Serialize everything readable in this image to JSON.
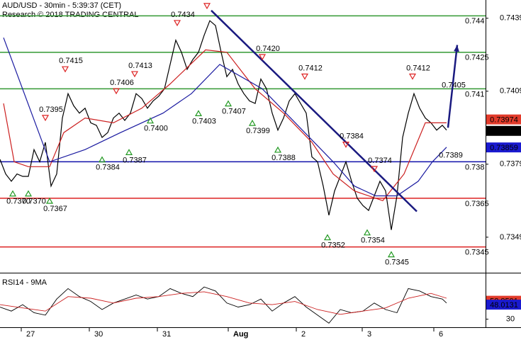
{
  "chart_data": {
    "type": "line",
    "title": "AUD/USD - 30min - 5:39:37 (CET)",
    "subtitle": "Research © 2018 TRADING CENTRAL",
    "xlim": [
      0,
      342.5
    ],
    "xticks": [
      {
        "value": 15,
        "label": "27"
      },
      {
        "value": 63,
        "label": "30"
      },
      {
        "value": 111,
        "label": "31"
      },
      {
        "value": 161,
        "label": "Aug"
      },
      {
        "value": 209,
        "label": "2"
      },
      {
        "value": 255.5,
        "label": "3"
      },
      {
        "value": 306,
        "label": "6"
      }
    ],
    "ylim": [
      0.73344,
      0.74465
    ],
    "yticks": [
      0.7349,
      0.7379,
      0.7409,
      0.7439
    ],
    "series": [
      {
        "color": "#000000",
        "x": [
          0,
          4,
          8,
          12,
          16,
          20,
          24,
          28,
          32,
          36,
          40,
          44,
          48,
          52,
          56,
          60,
          64,
          68,
          72,
          76,
          80,
          84,
          88,
          92,
          96,
          100,
          104,
          108,
          112,
          116,
          120,
          124,
          128,
          132,
          136,
          140,
          144,
          148,
          152,
          156,
          160,
          164,
          168,
          172,
          176,
          180,
          184,
          188,
          192,
          196,
          200,
          204,
          208,
          212,
          216,
          220,
          224,
          228,
          232,
          236,
          240,
          244,
          248,
          252,
          256,
          260,
          264,
          268,
          272,
          276,
          280,
          284,
          288,
          292,
          296,
          300,
          304,
          308,
          312,
          315
        ],
        "values": [
          0.7381,
          0.7375,
          0.7372,
          0.7375,
          0.7374,
          0.7374,
          0.7385,
          0.738,
          0.7388,
          0.737,
          0.7375,
          0.7398,
          0.7408,
          0.7403,
          0.74,
          0.7402,
          0.7396,
          0.7395,
          0.739,
          0.7392,
          0.7398,
          0.74,
          0.7397,
          0.74,
          0.7408,
          0.7406,
          0.7402,
          0.7405,
          0.7407,
          0.741,
          0.742,
          0.743,
          0.7425,
          0.7418,
          0.7422,
          0.7425,
          0.7432,
          0.7438,
          0.7436,
          0.7425,
          0.7415,
          0.7418,
          0.7412,
          0.7408,
          0.7405,
          0.7404,
          0.7414,
          0.741,
          0.74,
          0.7393,
          0.7398,
          0.7405,
          0.7408,
          0.7404,
          0.74,
          0.7382,
          0.738,
          0.737,
          0.7358,
          0.7368,
          0.7374,
          0.738,
          0.7372,
          0.7365,
          0.7362,
          0.736,
          0.7366,
          0.7372,
          0.7368,
          0.7352,
          0.7366,
          0.739,
          0.74,
          0.7408,
          0.7402,
          0.7398,
          0.7396,
          0.7393,
          0.7395,
          0.7393
        ]
      },
      {
        "color": "#cc2020",
        "x": [
          2.5,
          10,
          20,
          35,
          45,
          60,
          80,
          100,
          120,
          145,
          160,
          180,
          200,
          220,
          235,
          250,
          270,
          285,
          300,
          315
        ],
        "values": [
          0.7404,
          0.738,
          0.7378,
          0.7378,
          0.7392,
          0.7398,
          0.7396,
          0.7402,
          0.7412,
          0.7426,
          0.7425,
          0.741,
          0.74,
          0.7388,
          0.7375,
          0.7368,
          0.7364,
          0.7375,
          0.7396,
          0.7396
        ]
      },
      {
        "color": "#1a1aa0",
        "x": [
          2.5,
          35,
          60,
          85,
          115,
          135,
          155,
          185,
          210,
          235,
          250,
          265,
          280,
          295,
          305,
          315
        ],
        "values": [
          0.7431,
          0.738,
          0.7385,
          0.7392,
          0.74,
          0.7408,
          0.742,
          0.741,
          0.7395,
          0.738,
          0.737,
          0.7366,
          0.7366,
          0.7372,
          0.738,
          0.7386
        ]
      }
    ],
    "levels": [
      {
        "value": 0.744,
        "color": "#339933"
      },
      {
        "value": 0.7425,
        "color": "#339933"
      },
      {
        "value": 0.741,
        "color": "#339933"
      },
      {
        "value": 0.738,
        "color": "#1010aa"
      },
      {
        "value": 0.7365,
        "color": "#dd2222"
      },
      {
        "value": 0.7345,
        "color": "#dd2222"
      }
    ],
    "price_tags": [
      {
        "value": 0.73974,
        "color": "#e23b2b"
      },
      {
        "value": 0.73927,
        "color": "#000000"
      },
      {
        "value": 0.73859,
        "color": "#1a1ad0"
      }
    ],
    "annotations": [
      {
        "kind": "low",
        "x": 9,
        "value": 0.737,
        "label": "0.7370"
      },
      {
        "kind": "low",
        "x": 20,
        "value": 0.737,
        "label": "0.7370"
      },
      {
        "kind": "low",
        "x": 35,
        "value": 0.7367
      },
      {
        "kind": "high",
        "x": 32,
        "value": 0.7395
      },
      {
        "kind": "high",
        "x": 46,
        "value": 0.7415
      },
      {
        "kind": "low",
        "x": 72,
        "value": 0.7384
      },
      {
        "kind": "high",
        "x": 82,
        "value": 0.7406
      },
      {
        "kind": "low",
        "x": 91,
        "value": 0.7387
      },
      {
        "kind": "high",
        "x": 95,
        "value": 0.7413
      },
      {
        "kind": "low",
        "x": 106,
        "value": 0.74,
        "label": "0.7400"
      },
      {
        "kind": "high",
        "x": 125,
        "value": 0.7434
      },
      {
        "kind": "low",
        "x": 140,
        "value": 0.7403
      },
      {
        "kind": "high",
        "x": 146,
        "value": 0.7441
      },
      {
        "kind": "low",
        "x": 161,
        "value": 0.7407
      },
      {
        "kind": "high",
        "x": 185,
        "value": 0.742,
        "label": "0.7420"
      },
      {
        "kind": "low",
        "x": 178,
        "value": 0.7399
      },
      {
        "kind": "low",
        "x": 196,
        "value": 0.7388
      },
      {
        "kind": "high",
        "x": 215,
        "value": 0.7412
      },
      {
        "kind": "low",
        "x": 231,
        "value": 0.7352
      },
      {
        "kind": "high",
        "x": 244,
        "value": 0.7384
      },
      {
        "kind": "high",
        "x": 264,
        "value": 0.7374
      },
      {
        "kind": "low",
        "x": 259,
        "value": 0.7354
      },
      {
        "kind": "low",
        "x": 276,
        "value": 0.7345
      },
      {
        "kind": "high",
        "x": 291,
        "value": 0.7412
      },
      {
        "kind": "high",
        "x": 316,
        "value": 0.7405,
        "marker": false
      },
      {
        "kind": "low",
        "x": 314,
        "value": 0.7389,
        "marker": false
      }
    ],
    "trendline": {
      "color": "#1a1a80",
      "x": [
        149,
        294
      ],
      "values": [
        0.74422,
        0.73596
      ]
    },
    "arrow": {
      "color": "#1a1a80",
      "x": [
        316,
        322.5
      ],
      "values": [
        0.7394,
        0.7428
      ]
    },
    "rsi": {
      "title": "RSI14 - 9MA",
      "ylim": [
        20,
        85
      ],
      "yticks": [
        30
      ],
      "series": [
        {
          "color": "#000000",
          "x": [
            0,
            8,
            16,
            24,
            32,
            40,
            48,
            56,
            64,
            72,
            80,
            88,
            96,
            104,
            112,
            120,
            128,
            136,
            144,
            152,
            160,
            168,
            176,
            184,
            192,
            200,
            208,
            216,
            224,
            232,
            240,
            248,
            256,
            264,
            272,
            280,
            288,
            296,
            304,
            312,
            315
          ],
          "values": [
            45,
            40,
            48,
            38,
            35,
            55,
            68,
            58,
            52,
            42,
            50,
            55,
            60,
            55,
            58,
            68,
            62,
            58,
            70,
            65,
            50,
            45,
            48,
            55,
            40,
            50,
            58,
            45,
            35,
            25,
            42,
            38,
            40,
            50,
            42,
            38,
            68,
            65,
            58,
            55,
            50
          ]
        },
        {
          "color": "#cc2020",
          "x": [
            0,
            16,
            32,
            48,
            64,
            80,
            96,
            112,
            128,
            144,
            160,
            176,
            192,
            208,
            224,
            240,
            256,
            272,
            288,
            304,
            315
          ],
          "values": [
            48,
            44,
            40,
            58,
            56,
            50,
            56,
            58,
            62,
            64,
            58,
            50,
            48,
            52,
            42,
            36,
            40,
            44,
            56,
            62,
            56
          ]
        }
      ],
      "price_tags": [
        {
          "value": 52.8591,
          "color": "#e23b2b"
        },
        {
          "value": 48.0131,
          "color": "#1a1ad0"
        }
      ]
    }
  }
}
